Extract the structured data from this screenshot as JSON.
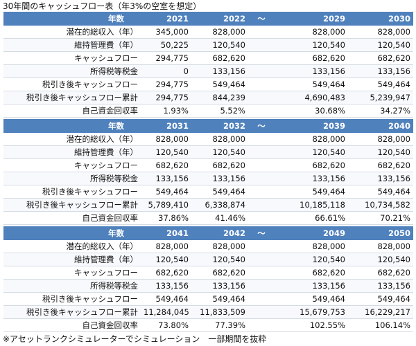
{
  "title": "30年間のキャッシュフロー表（年3%の空室を想定）",
  "footnote": "※アセットランクシミュレーターでシミュレーション　一部期間を抜粋",
  "header_label": "年数",
  "gap_symbol": "～",
  "row_labels": [
    "潜在的総収入（年）",
    "維持管理費（年）",
    "キャッシュフロー",
    "所得税等税金",
    "税引き後キャッシュフロー",
    "税引き後キャッシュフロー累計",
    "自己資金回収率"
  ],
  "blocks": [
    {
      "years": [
        "2021",
        "2022",
        "2029",
        "2030"
      ],
      "rows": [
        [
          "345,000",
          "828,000",
          "828,000",
          "828,000"
        ],
        [
          "50,225",
          "120,540",
          "120,540",
          "120,540"
        ],
        [
          "294,775",
          "682,620",
          "682,620",
          "682,620"
        ],
        [
          "0",
          "133,156",
          "133,156",
          "133,156"
        ],
        [
          "294,775",
          "549,464",
          "549,464",
          "549,464"
        ],
        [
          "294,775",
          "844,239",
          "4,690,483",
          "5,239,947"
        ],
        [
          "1.93%",
          "5.52%",
          "30.68%",
          "34.27%"
        ]
      ]
    },
    {
      "years": [
        "2031",
        "2032",
        "2039",
        "2040"
      ],
      "rows": [
        [
          "828,000",
          "828,000",
          "828,000",
          "828,000"
        ],
        [
          "120,540",
          "120,540",
          "120,540",
          "120,540"
        ],
        [
          "682,620",
          "682,620",
          "682,620",
          "682,620"
        ],
        [
          "133,156",
          "133,156",
          "133,156",
          "133,156"
        ],
        [
          "549,464",
          "549,464",
          "549,464",
          "549,464"
        ],
        [
          "5,789,410",
          "6,338,874",
          "10,185,118",
          "10,734,582"
        ],
        [
          "37.86%",
          "41.46%",
          "66.61%",
          "70.21%"
        ]
      ]
    },
    {
      "years": [
        "2041",
        "2042",
        "2049",
        "2050"
      ],
      "rows": [
        [
          "828,000",
          "828,000",
          "828,000",
          "828,000"
        ],
        [
          "120,540",
          "120,540",
          "120,540",
          "120,540"
        ],
        [
          "682,620",
          "682,620",
          "682,620",
          "682,620"
        ],
        [
          "133,156",
          "133,156",
          "133,156",
          "133,156"
        ],
        [
          "549,464",
          "549,464",
          "549,464",
          "549,464"
        ],
        [
          "11,284,045",
          "11,833,509",
          "15,679,753",
          "16,229,217"
        ],
        [
          "73.80%",
          "77.39%",
          "102.55%",
          "106.14%"
        ]
      ]
    }
  ]
}
